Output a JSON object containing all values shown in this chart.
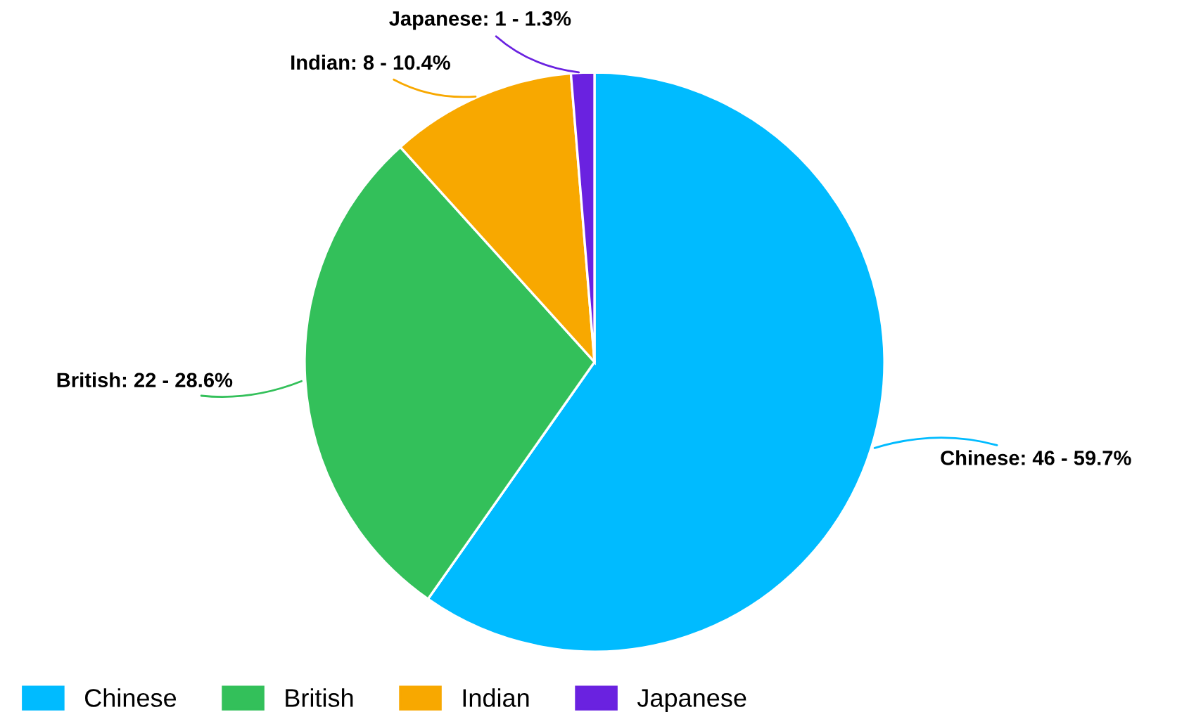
{
  "chart_data": {
    "type": "pie",
    "categories": [
      "Chinese",
      "British",
      "Indian",
      "Japanese"
    ],
    "values": [
      46,
      22,
      8,
      1
    ],
    "colors": [
      "#00bbff",
      "#33c05a",
      "#f8a800",
      "#6a22e0"
    ],
    "value_labels": [
      "Chinese: 46 - 59.7%",
      "British: 22 - 28.6%",
      "Indian: 8 - 10.4%",
      "Japanese: 1 - 1.3%"
    ],
    "legend": "bottom left"
  }
}
